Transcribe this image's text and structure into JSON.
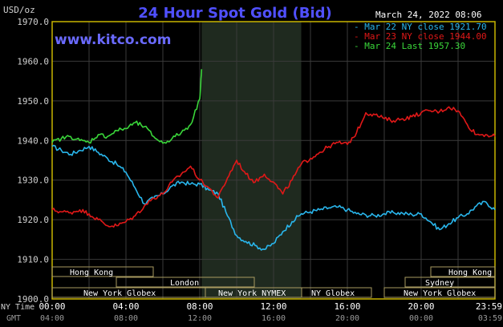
{
  "header": {
    "unit": "USD/oz",
    "title": "24 Hour Spot Gold (Bid)",
    "datetime": "March 24, 2022 08:06",
    "site": "www.kitco.com"
  },
  "colors": {
    "background": "#000000",
    "gold_frame": "#c8b400",
    "grid": "#3a3a3a",
    "title": "#5050ff",
    "site": "#6a6aff",
    "ny_highlight": "#1f2a1f",
    "series_mar22": "#29b6ec",
    "series_mar23": "#e01818",
    "series_mar24": "#3ad63a",
    "session_box": "#a89a60",
    "session_text": "#ffffff"
  },
  "time_rows": {
    "ny_label": "NY Time",
    "gmt_label": "GMT",
    "ny_ticks": [
      "00:00",
      "04:00",
      "08:00",
      "12:00",
      "16:00",
      "20:00",
      "23:59"
    ],
    "gmt_ticks": [
      "04:00",
      "08:00",
      "12:00",
      "16:00",
      "20:00",
      "00:00",
      "03:59"
    ]
  },
  "sessions": {
    "hong_kong_left": "Hong Kong",
    "london": "London",
    "ny_globex_left": "New York Globex",
    "ny_nymex": "New York NYMEX",
    "ny_globex_mid": "NY Globex",
    "hong_kong_right": "Hong Kong",
    "sydney": "Sydney",
    "ny_globex_right": "New York Globex"
  },
  "chart_data": {
    "type": "line",
    "title": "24 Hour Spot Gold (Bid)",
    "ylabel": "USD/oz",
    "xlabel": "NY Time",
    "ylim": [
      1900,
      1970
    ],
    "xlim": [
      0,
      24
    ],
    "yticks": [
      "1900.0",
      "1910.0",
      "1920.0",
      "1930.0",
      "1940.0",
      "1950.0",
      "1960.0",
      "1970.0"
    ],
    "grid": true,
    "legend_position": "top-right",
    "highlight_range_hours": [
      8.1,
      13.5
    ],
    "series": [
      {
        "name": "Mar 22 NY close 1921.70",
        "color": "#29b6ec",
        "x": [
          0,
          0.5,
          1,
          1.5,
          2,
          2.5,
          3,
          3.5,
          4,
          4.5,
          5,
          5.5,
          6,
          6.5,
          7,
          7.5,
          8,
          8.5,
          9,
          9.5,
          10,
          10.5,
          11,
          11.5,
          12,
          12.5,
          13,
          13.5,
          14,
          14.5,
          15,
          15.5,
          16,
          16.5,
          17,
          17.5,
          18,
          18.5,
          19,
          19.5,
          20,
          20.5,
          21,
          21.5,
          22,
          22.5,
          23,
          23.5,
          24
        ],
        "values": [
          1938.5,
          1937.5,
          1936.5,
          1937.5,
          1938.5,
          1937,
          1935.5,
          1934,
          1932,
          1928,
          1924,
          1925.5,
          1926.5,
          1928.5,
          1929.5,
          1929,
          1929,
          1927.5,
          1926.5,
          1921,
          1916,
          1914.5,
          1913.5,
          1912.5,
          1914,
          1917,
          1919.5,
          1921.5,
          1922,
          1922.5,
          1923,
          1923.2,
          1922.5,
          1921.5,
          1921.2,
          1921,
          1921.5,
          1921.8,
          1921.6,
          1921.3,
          1921.5,
          1919.5,
          1917.5,
          1919,
          1920.5,
          1921.5,
          1923.5,
          1924.5,
          1922.5
        ]
      },
      {
        "name": "Mar 23 NY close 1944.00",
        "color": "#e01818",
        "x": [
          0,
          0.5,
          1,
          1.5,
          2,
          2.5,
          3,
          3.5,
          4,
          4.5,
          5,
          5.5,
          6,
          6.5,
          7,
          7.5,
          8,
          8.5,
          9,
          9.5,
          10,
          10.5,
          11,
          11.5,
          12,
          12.5,
          13,
          13.5,
          14,
          14.5,
          15,
          15.5,
          16,
          16.5,
          17,
          17.5,
          18,
          18.5,
          19,
          19.5,
          20,
          20.5,
          21,
          21.5,
          22,
          22.5,
          23,
          23.5,
          24
        ],
        "values": [
          1922.5,
          1922,
          1921.8,
          1922.5,
          1921.5,
          1920,
          1918.5,
          1918.5,
          1919.5,
          1921,
          1923.5,
          1925.5,
          1926.5,
          1929.5,
          1931.5,
          1933.5,
          1930,
          1928,
          1925.5,
          1930.5,
          1935,
          1931.5,
          1929.5,
          1931.5,
          1929.5,
          1926.5,
          1930,
          1934,
          1935.5,
          1937,
          1938.5,
          1939.5,
          1939,
          1942,
          1947,
          1946.5,
          1945.5,
          1945,
          1945.5,
          1946,
          1947,
          1947.5,
          1947.3,
          1948.5,
          1947.5,
          1944,
          1941.5,
          1941.5,
          1941
        ]
      },
      {
        "name": "Mar 24 Last 1957.30",
        "color": "#3ad63a",
        "x": [
          0,
          0.5,
          1,
          1.5,
          2,
          2.5,
          3,
          3.5,
          4,
          4.5,
          5,
          5.5,
          6,
          6.5,
          7,
          7.5,
          8,
          8.1
        ],
        "values": [
          1939.5,
          1940.5,
          1941,
          1940,
          1939.5,
          1941.5,
          1941,
          1942.5,
          1943,
          1944.5,
          1943.5,
          1941,
          1939.3,
          1940.5,
          1942,
          1944,
          1950.5,
          1958
        ]
      }
    ]
  }
}
